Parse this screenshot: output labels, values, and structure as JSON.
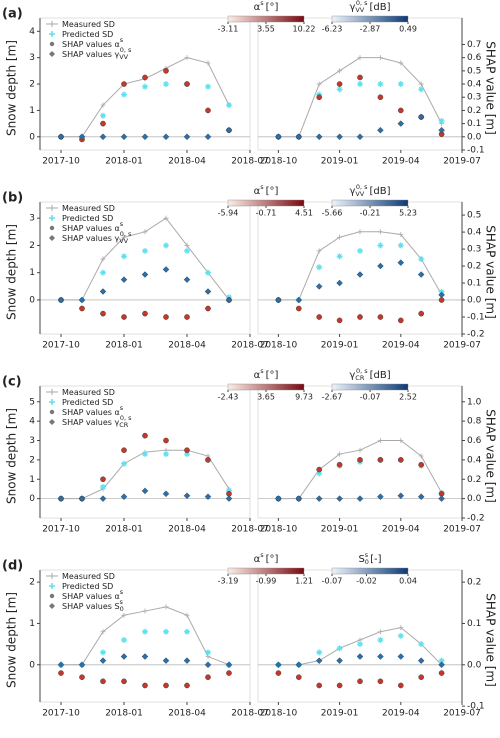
{
  "chart_data": [
    {
      "type": "scatter",
      "panel_label": "(a)",
      "y_label": "Snow depth [m]",
      "y2_label": "SHAP value [m]",
      "ylim": [
        -0.5,
        4.2
      ],
      "yticks": [
        0,
        1,
        2,
        3,
        4
      ],
      "y2lim": [
        -0.1,
        0.84
      ],
      "y2ticks": [
        -0.1,
        0.0,
        0.1,
        0.2,
        0.3,
        0.4,
        0.5,
        0.6,
        0.7
      ],
      "xlim": [
        [
          "2017-09",
          "2018-07"
        ],
        [
          "2018-09",
          "2019-07"
        ]
      ],
      "xticks": [
        [
          "2017-10",
          "2018-01",
          "2018-04",
          "2018-07"
        ],
        [
          "2018-10",
          "2019-01",
          "2019-04",
          "2019-07"
        ]
      ],
      "x": [
        "2017-10",
        "2017-11",
        "2017-12",
        "2018-01",
        "2018-02",
        "2018-03",
        "2018-04",
        "2018-05",
        "2018-06",
        "2018-10",
        "2018-11",
        "2018-12",
        "2019-01",
        "2019-02",
        "2019-03",
        "2019-04",
        "2019-05",
        "2019-06"
      ],
      "colorbars": [
        {
          "symbol": "α",
          "sup": "s",
          "unit": "[°]",
          "colors": [
            "#fbeee6",
            "#7a0a12"
          ],
          "ticks": [
            -3.11,
            3.55,
            10.22
          ]
        },
        {
          "symbol": "γ",
          "sup": "0, s",
          "sub": "VV",
          "unit": "[dB]",
          "colors": [
            "#eef4fb",
            "#0b3a75"
          ],
          "ticks": [
            -6.23,
            -2.87,
            0.49
          ]
        }
      ],
      "series": [
        {
          "name": "Measured SD",
          "color": "#aaaaaa",
          "values": [
            0,
            0,
            1.2,
            2.0,
            2.2,
            2.6,
            3.0,
            2.8,
            1.2,
            0,
            0,
            2.0,
            2.5,
            3.0,
            3.0,
            2.8,
            2.0,
            0.5
          ]
        },
        {
          "name": "Predicted SD",
          "color": "#5ee0f0",
          "values": [
            0,
            0,
            0.8,
            1.6,
            1.9,
            2.0,
            2.0,
            1.9,
            1.2,
            0,
            0,
            1.6,
            1.8,
            2.0,
            2.0,
            2.0,
            1.8,
            0.6
          ]
        },
        {
          "name": "SHAP values",
          "color": "#c0392b",
          "axis": "y2",
          "values": [
            0,
            -0.02,
            0.1,
            0.4,
            0.45,
            0.5,
            0.4,
            0.2,
            0.05,
            0,
            0,
            0.3,
            0.4,
            0.45,
            0.3,
            0.2,
            0.15,
            0.02
          ]
        },
        {
          "name": "SHAP values",
          "color": "#2a6fad",
          "axis": "y2",
          "values": [
            0,
            0,
            0,
            0,
            0,
            0,
            0,
            0,
            0.05,
            0,
            0,
            0,
            0,
            0,
            0.05,
            0.1,
            0.15,
            0.05
          ]
        }
      ]
    },
    {
      "type": "scatter",
      "panel_label": "(b)",
      "y_label": "Snow depth [m]",
      "y2_label": "SHAP value [m]",
      "ylim": [
        -1.25,
        3.3
      ],
      "yticks": [
        0,
        1,
        2,
        3
      ],
      "y2lim": [
        -0.2,
        0.53
      ],
      "y2ticks": [
        -0.2,
        -0.1,
        0.0,
        0.1,
        0.2,
        0.3,
        0.4,
        0.5
      ],
      "xlim": [
        [
          "2017-09",
          "2018-07"
        ],
        [
          "2018-09",
          "2019-07"
        ]
      ],
      "xticks": [
        [
          "2017-10",
          "2018-01",
          "2018-04",
          "2018-07"
        ],
        [
          "2018-10",
          "2019-01",
          "2019-04",
          "2019-07"
        ]
      ],
      "x": [
        "2017-10",
        "2017-11",
        "2017-12",
        "2018-01",
        "2018-02",
        "2018-03",
        "2018-04",
        "2018-05",
        "2018-06",
        "2018-10",
        "2018-11",
        "2018-12",
        "2019-01",
        "2019-02",
        "2019-03",
        "2019-04",
        "2019-05",
        "2019-06"
      ],
      "colorbars": [
        {
          "symbol": "α",
          "sup": "s",
          "unit": "[°]",
          "colors": [
            "#fbeee6",
            "#7a0a12"
          ],
          "ticks": [
            -5.94,
            -0.71,
            4.51
          ]
        },
        {
          "symbol": "γ",
          "sup": "0, s",
          "sub": "VV",
          "unit": "[dB]",
          "colors": [
            "#eef4fb",
            "#0b3a75"
          ],
          "ticks": [
            -5.66,
            -0.21,
            5.23
          ]
        }
      ],
      "series": [
        {
          "name": "Measured SD",
          "color": "#aaaaaa",
          "values": [
            0,
            0,
            1.5,
            2.3,
            2.5,
            3.0,
            2.0,
            1.0,
            0,
            0,
            0,
            1.8,
            2.3,
            2.5,
            2.5,
            2.4,
            1.5,
            0.2
          ]
        },
        {
          "name": "Predicted SD",
          "color": "#5ee0f0",
          "values": [
            0,
            0,
            1.0,
            1.6,
            1.8,
            2.0,
            1.8,
            1.0,
            0.1,
            0,
            0,
            1.2,
            1.6,
            1.8,
            2.0,
            2.0,
            1.5,
            0.3
          ]
        },
        {
          "name": "SHAP values",
          "color": "#c0392b",
          "axis": "y2",
          "values": [
            0,
            -0.05,
            -0.08,
            -0.1,
            -0.08,
            -0.1,
            -0.1,
            -0.05,
            0,
            0,
            -0.05,
            -0.1,
            -0.12,
            -0.1,
            -0.1,
            -0.12,
            -0.08,
            0
          ]
        },
        {
          "name": "SHAP values",
          "color": "#2a6fad",
          "axis": "y2",
          "values": [
            0,
            0,
            0.05,
            0.12,
            0.15,
            0.18,
            0.12,
            0.05,
            0,
            0,
            0,
            0.08,
            0.1,
            0.15,
            0.2,
            0.22,
            0.15,
            0.03
          ]
        }
      ]
    },
    {
      "type": "scatter",
      "panel_label": "(c)",
      "y_label": "Snow depth [m]",
      "y2_label": "SHAP value [m]",
      "ylim": [
        -1,
        5.4
      ],
      "yticks": [
        0,
        1,
        2,
        3,
        4,
        5
      ],
      "y2lim": [
        -0.2,
        1.08
      ],
      "y2ticks": [
        -0.2,
        0.0,
        0.2,
        0.4,
        0.6,
        0.8,
        1.0
      ],
      "xlim": [
        [
          "2017-09",
          "2018-07"
        ],
        [
          "2018-09",
          "2019-07"
        ]
      ],
      "xticks": [
        [
          "2017-10",
          "2018-01",
          "2018-04",
          "2018-07"
        ],
        [
          "2018-10",
          "2019-01",
          "2019-04",
          "2019-07"
        ]
      ],
      "x": [
        "2017-10",
        "2017-11",
        "2017-12",
        "2018-01",
        "2018-02",
        "2018-03",
        "2018-04",
        "2018-05",
        "2018-06",
        "2018-10",
        "2018-11",
        "2018-12",
        "2019-01",
        "2019-02",
        "2019-03",
        "2019-04",
        "2019-05",
        "2019-06"
      ],
      "colorbars": [
        {
          "symbol": "α",
          "sup": "s",
          "unit": "[°]",
          "colors": [
            "#fbeee6",
            "#7a0a12"
          ],
          "ticks": [
            -2.43,
            3.65,
            9.73
          ]
        },
        {
          "symbol": "γ",
          "sup": "0, s",
          "sub": "CR",
          "unit": "[dB]",
          "colors": [
            "#eef4fb",
            "#0b3a75"
          ],
          "ticks": [
            -2.67,
            -0.07,
            2.52
          ]
        }
      ],
      "series": [
        {
          "name": "Measured SD",
          "color": "#aaaaaa",
          "values": [
            0,
            0,
            0.5,
            1.8,
            2.4,
            2.5,
            2.5,
            2.2,
            0.5,
            0,
            0,
            1.5,
            2.3,
            2.5,
            3.0,
            3.0,
            2.2,
            0.3
          ]
        },
        {
          "name": "Predicted SD",
          "color": "#5ee0f0",
          "values": [
            0,
            0,
            0.6,
            1.8,
            2.3,
            2.3,
            2.3,
            2.0,
            0.4,
            0,
            0,
            1.3,
            1.7,
            1.9,
            2.0,
            2.0,
            1.7,
            0.3
          ]
        },
        {
          "name": "SHAP values",
          "color": "#c0392b",
          "axis": "y2",
          "values": [
            0,
            0,
            0.2,
            0.5,
            0.65,
            0.6,
            0.5,
            0.4,
            0.05,
            0,
            0,
            0.3,
            0.35,
            0.4,
            0.4,
            0.4,
            0.35,
            0.05
          ]
        },
        {
          "name": "SHAP values",
          "color": "#2a6fad",
          "axis": "y2",
          "values": [
            0,
            0,
            0,
            0.02,
            0.08,
            0.05,
            0.03,
            0.02,
            0,
            0,
            0,
            0,
            0,
            0,
            0.02,
            0.03,
            0.02,
            0
          ]
        }
      ]
    },
    {
      "type": "scatter",
      "panel_label": "(d)",
      "y_label": "Snow depth [m]",
      "y2_label": "SHAP value [m]",
      "ylim": [
        -0.9,
        2.1
      ],
      "yticks": [
        0,
        1,
        2
      ],
      "y2lim": [
        -0.09,
        0.21
      ],
      "y2ticks": [
        -0.1,
        0.0,
        0.1,
        0.2
      ],
      "xlim": [
        [
          "2017-09",
          "2018-07"
        ],
        [
          "2018-09",
          "2019-07"
        ]
      ],
      "xticks": [
        [
          "2017-10",
          "2018-01",
          "2018-04",
          "2018-07"
        ],
        [
          "2018-10",
          "2019-01",
          "2019-04",
          "2019-07"
        ]
      ],
      "x": [
        "2017-10",
        "2017-11",
        "2017-12",
        "2018-01",
        "2018-02",
        "2018-03",
        "2018-04",
        "2018-05",
        "2018-06",
        "2018-10",
        "2018-11",
        "2018-12",
        "2019-01",
        "2019-02",
        "2019-03",
        "2019-04",
        "2019-05",
        "2019-06"
      ],
      "colorbars": [
        {
          "symbol": "α",
          "sup": "s",
          "unit": "[°]",
          "colors": [
            "#fbeee6",
            "#7a0a12"
          ],
          "ticks": [
            -3.19,
            -0.99,
            1.21
          ]
        },
        {
          "symbol": "S",
          "sup": "s",
          "sub": "0",
          "unit": "[-]",
          "colors": [
            "#eef4fb",
            "#0b3a75"
          ],
          "ticks": [
            -0.07,
            -0.02,
            0.04
          ]
        }
      ],
      "series": [
        {
          "name": "Measured SD",
          "color": "#aaaaaa",
          "values": [
            0,
            0,
            0.8,
            1.2,
            1.3,
            1.4,
            1.2,
            0.2,
            0,
            0,
            0,
            0.1,
            0.4,
            0.6,
            0.8,
            0.9,
            0.5,
            0
          ]
        },
        {
          "name": "Predicted SD",
          "color": "#5ee0f0",
          "values": [
            0,
            0,
            0.3,
            0.6,
            0.8,
            0.8,
            0.8,
            0.3,
            0,
            0,
            0,
            0.3,
            0.4,
            0.5,
            0.6,
            0.7,
            0.5,
            0.1
          ]
        },
        {
          "name": "SHAP values",
          "color": "#c0392b",
          "axis": "y2",
          "values": [
            -0.02,
            -0.03,
            -0.04,
            -0.04,
            -0.05,
            -0.05,
            -0.05,
            -0.03,
            -0.02,
            -0.02,
            -0.03,
            -0.05,
            -0.05,
            -0.04,
            -0.04,
            -0.05,
            -0.03,
            -0.02
          ]
        },
        {
          "name": "SHAP values",
          "color": "#2a6fad",
          "axis": "y2",
          "values": [
            0,
            0,
            0.01,
            0.02,
            0.02,
            0.01,
            0.01,
            0,
            0,
            0,
            0,
            0.01,
            0.01,
            0.02,
            0.02,
            0.02,
            0.01,
            0
          ]
        }
      ]
    }
  ]
}
